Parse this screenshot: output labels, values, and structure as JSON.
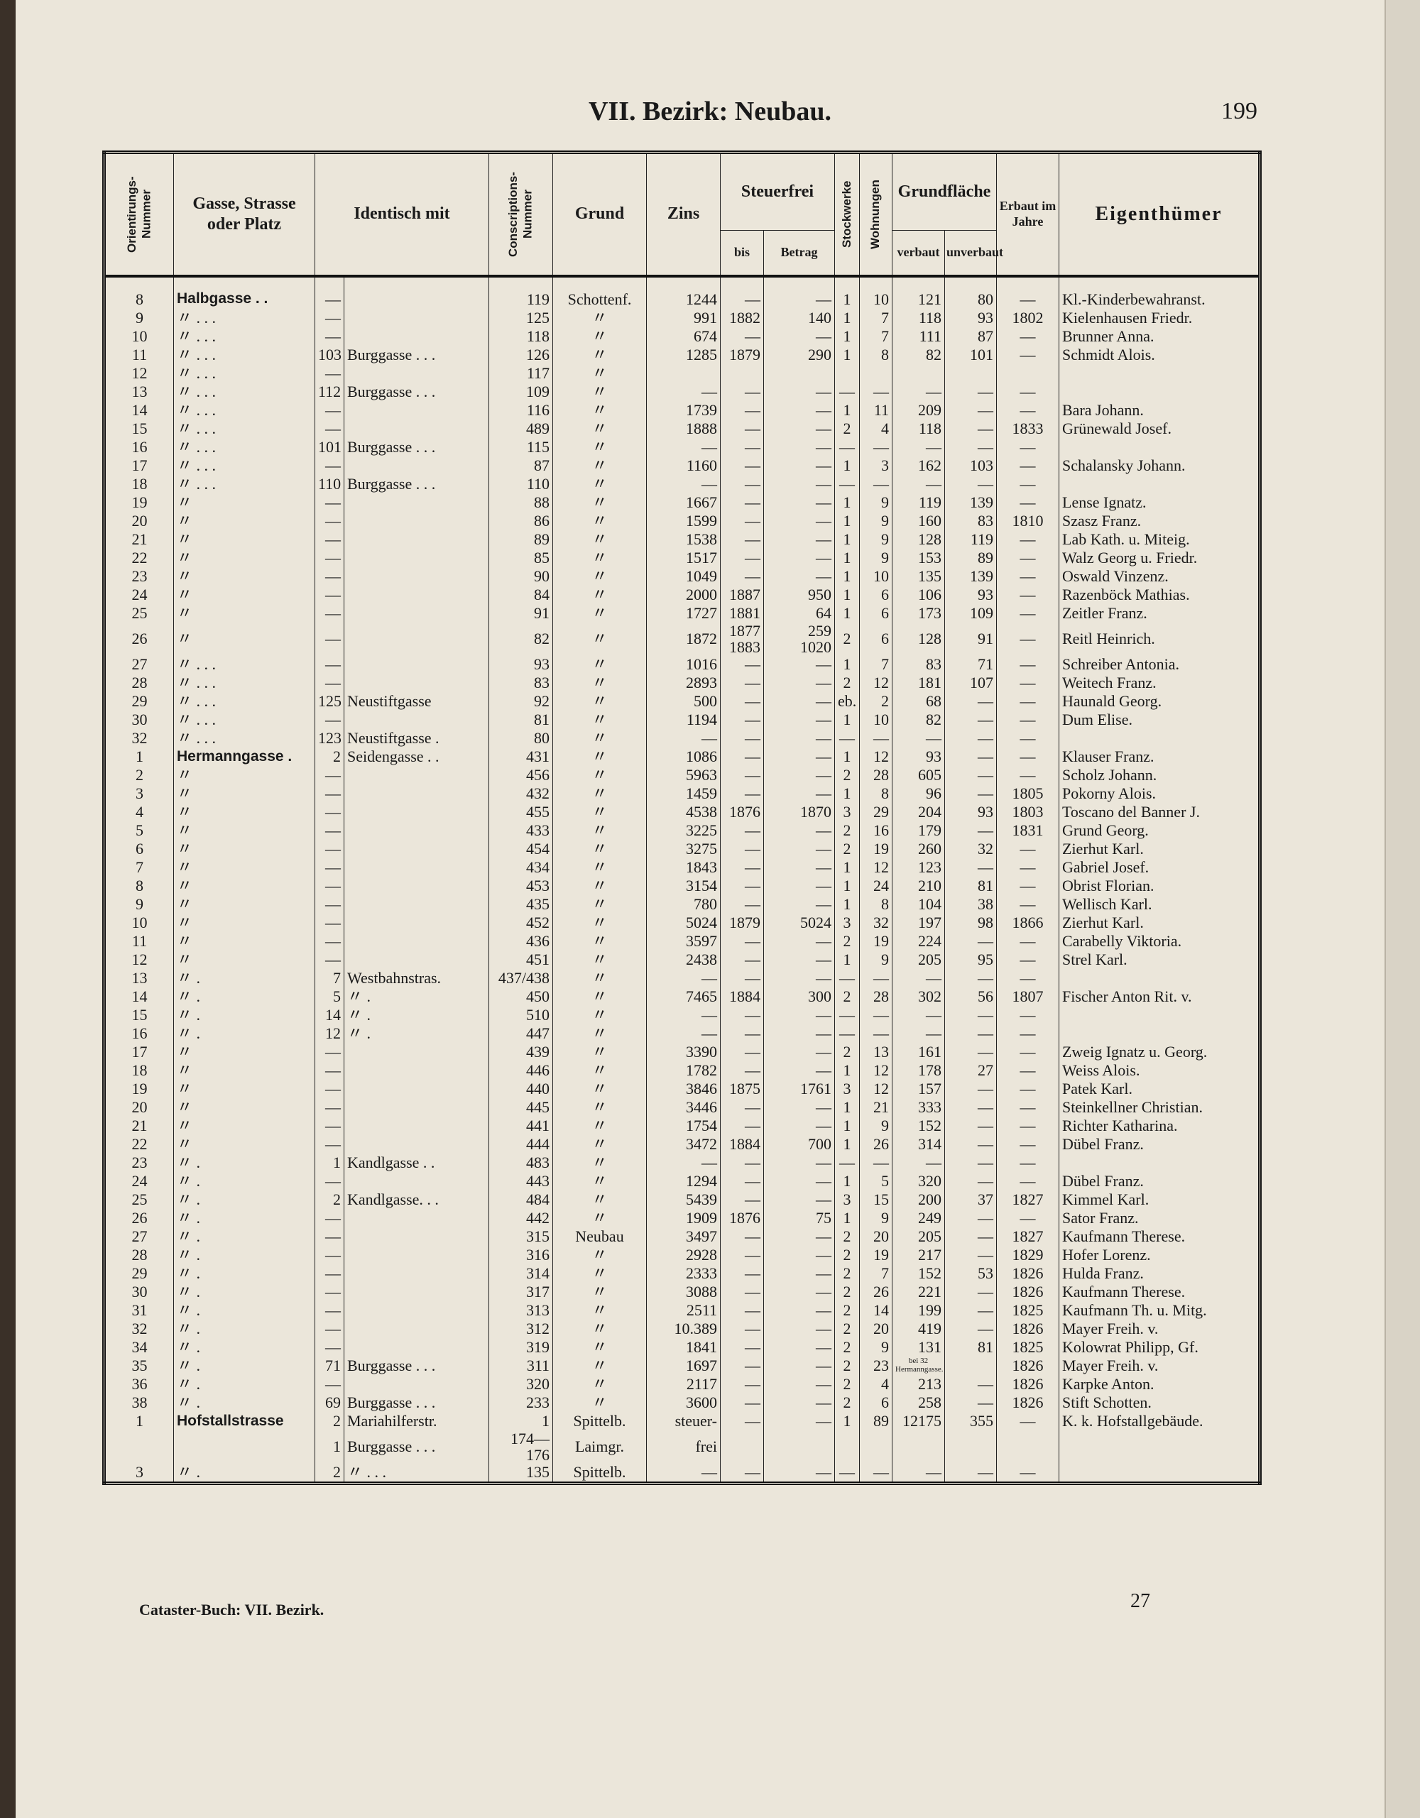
{
  "header": {
    "title": "VII. Bezirk: Neubau.",
    "page_number": "199"
  },
  "columns": {
    "orient": "Orientirungs-Nummer",
    "gasse": "Gasse, Strasse oder Platz",
    "identisch": "Identisch mit",
    "conscr": "Conscriptions-Nummer",
    "grund": "Grund",
    "zins": "Zins",
    "steuerfrei": "Steuerfrei",
    "bis": "bis",
    "betrag": "Betrag",
    "stock": "Stockwerke",
    "wohn": "Wohnungen",
    "grundflaeche": "Grundfläche",
    "verbaut": "verbaut",
    "unverbaut": "unverbaut",
    "erbaut": "Erbaut im Jahre",
    "eigenthuemer": "Eigenthümer"
  },
  "table": {
    "rows": [
      [
        "8",
        "Halbgasse . .",
        "—",
        null,
        "119",
        "Schottenf.",
        "1244",
        "—",
        "—",
        "1",
        "10",
        "121",
        "80",
        "—",
        "Kl.-Kinderbewahranst."
      ],
      [
        "9",
        "〃 . . .",
        "—",
        null,
        "125",
        "〃",
        "991",
        "1882",
        "140",
        "1",
        "7",
        "118",
        "93",
        "1802",
        "Kielenhausen Friedr."
      ],
      [
        "10",
        "〃 . . .",
        "—",
        null,
        "118",
        "〃",
        "674",
        "—",
        "—",
        "1",
        "7",
        "111",
        "87",
        "—",
        "Brunner Anna."
      ],
      [
        "11",
        "〃 . . .",
        "103",
        "Burggasse . . .",
        "126",
        "〃",
        "1285",
        "1879",
        "290",
        "1",
        "8",
        "82",
        "101",
        "—",
        "Schmidt Alois."
      ],
      [
        "12",
        "〃 . . .",
        "—",
        null,
        "117",
        "〃",
        null,
        null,
        null,
        null,
        null,
        null,
        null,
        null,
        null
      ],
      [
        "13",
        "〃 . . .",
        "112",
        "Burggasse . . .",
        "109",
        "〃",
        "—",
        "—",
        "—",
        "—",
        "—",
        "—",
        "—",
        "—",
        null
      ],
      [
        "14",
        "〃 . . .",
        "—",
        null,
        "116",
        "〃",
        "1739",
        "—",
        "—",
        "1",
        "11",
        "209",
        "—",
        "—",
        "Bara Johann."
      ],
      [
        "15",
        "〃 . . .",
        "—",
        null,
        "489",
        "〃",
        "1888",
        "—",
        "—",
        "2",
        "4",
        "118",
        "—",
        "1833",
        "Grünewald Josef."
      ],
      [
        "16",
        "〃 . . .",
        "101",
        "Burggasse . . .",
        "115",
        "〃",
        "—",
        "—",
        "—",
        "—",
        "—",
        "—",
        "—",
        "—",
        null
      ],
      [
        "17",
        "〃 . . .",
        "—",
        null,
        "87",
        "〃",
        "1160",
        "—",
        "—",
        "1",
        "3",
        "162",
        "103",
        "—",
        "Schalansky Johann."
      ],
      [
        "18",
        "〃 . . .",
        "110",
        "Burggasse . . .",
        "110",
        "〃",
        "—",
        "—",
        "—",
        "—",
        "—",
        "—",
        "—",
        "—",
        null
      ],
      [
        "19",
        "〃",
        "—",
        null,
        "88",
        "〃",
        "1667",
        "—",
        "—",
        "1",
        "9",
        "119",
        "139",
        "—",
        "Lense Ignatz."
      ],
      [
        "20",
        "〃",
        "—",
        null,
        "86",
        "〃",
        "1599",
        "—",
        "—",
        "1",
        "9",
        "160",
        "83",
        "1810",
        "Szasz Franz."
      ],
      [
        "21",
        "〃",
        "—",
        null,
        "89",
        "〃",
        "1538",
        "—",
        "—",
        "1",
        "9",
        "128",
        "119",
        "—",
        "Lab Kath. u. Miteig."
      ],
      [
        "22",
        "〃",
        "—",
        null,
        "85",
        "〃",
        "1517",
        "—",
        "—",
        "1",
        "9",
        "153",
        "89",
        "—",
        "Walz Georg u. Friedr."
      ],
      [
        "23",
        "〃",
        "—",
        null,
        "90",
        "〃",
        "1049",
        "—",
        "—",
        "1",
        "10",
        "135",
        "139",
        "—",
        "Oswald Vinzenz."
      ],
      [
        "24",
        "〃",
        "—",
        null,
        "84",
        "〃",
        "2000",
        "1887",
        "950",
        "1",
        "6",
        "106",
        "93",
        "—",
        "Razenböck Mathias."
      ],
      [
        "25",
        "〃",
        "—",
        null,
        "91",
        "〃",
        "1727",
        "1881",
        "64",
        "1",
        "6",
        "173",
        "109",
        "—",
        "Zeitler Franz."
      ],
      [
        "26",
        "〃",
        "—",
        null,
        "82",
        "〃",
        "1872",
        "1877\n1883",
        "259\n1020",
        "2",
        "6",
        "128",
        "91",
        "—",
        "Reitl Heinrich."
      ],
      [
        "27",
        "〃 . . .",
        "—",
        null,
        "93",
        "〃",
        "1016",
        "—",
        "—",
        "1",
        "7",
        "83",
        "71",
        "—",
        "Schreiber Antonia."
      ],
      [
        "28",
        "〃 . . .",
        "—",
        null,
        "83",
        "〃",
        "2893",
        "—",
        "—",
        "2",
        "12",
        "181",
        "107",
        "—",
        "Weitech Franz."
      ],
      [
        "29",
        "〃 . . .",
        "125",
        "Neustiftgasse",
        "92",
        "〃",
        "500",
        "—",
        "—",
        "eb.",
        "2",
        "68",
        "—",
        "—",
        "Haunald Georg."
      ],
      [
        "30",
        "〃 . . .",
        "—",
        null,
        "81",
        "〃",
        "1194",
        "—",
        "—",
        "1",
        "10",
        "82",
        "—",
        "—",
        "Dum Elise."
      ],
      [
        "32",
        "〃 . . .",
        "123",
        "Neustiftgasse .",
        "80",
        "〃",
        "—",
        "—",
        "—",
        "—",
        "—",
        "—",
        "—",
        "—",
        null
      ],
      [
        "1",
        "Hermanngasse .",
        "2",
        "Seidengasse . .",
        "431",
        "〃",
        "1086",
        "—",
        "—",
        "1",
        "12",
        "93",
        "—",
        "—",
        "Klauser Franz."
      ],
      [
        "2",
        "〃",
        "—",
        null,
        "456",
        "〃",
        "5963",
        "—",
        "—",
        "2",
        "28",
        "605",
        "—",
        "—",
        "Scholz Johann."
      ],
      [
        "3",
        "〃",
        "—",
        null,
        "432",
        "〃",
        "1459",
        "—",
        "—",
        "1",
        "8",
        "96",
        "—",
        "1805",
        "Pokorny Alois."
      ],
      [
        "4",
        "〃",
        "—",
        null,
        "455",
        "〃",
        "4538",
        "1876",
        "1870",
        "3",
        "29",
        "204",
        "93",
        "1803",
        "Toscano del Banner J."
      ],
      [
        "5",
        "〃",
        "—",
        null,
        "433",
        "〃",
        "3225",
        "—",
        "—",
        "2",
        "16",
        "179",
        "—",
        "1831",
        "Grund Georg."
      ],
      [
        "6",
        "〃",
        "—",
        null,
        "454",
        "〃",
        "3275",
        "—",
        "—",
        "2",
        "19",
        "260",
        "32",
        "—",
        "Zierhut Karl."
      ],
      [
        "7",
        "〃",
        "—",
        null,
        "434",
        "〃",
        "1843",
        "—",
        "—",
        "1",
        "12",
        "123",
        "—",
        "—",
        "Gabriel Josef."
      ],
      [
        "8",
        "〃",
        "—",
        null,
        "453",
        "〃",
        "3154",
        "—",
        "—",
        "1",
        "24",
        "210",
        "81",
        "—",
        "Obrist Florian."
      ],
      [
        "9",
        "〃",
        "—",
        null,
        "435",
        "〃",
        "780",
        "—",
        "—",
        "1",
        "8",
        "104",
        "38",
        "—",
        "Wellisch Karl."
      ],
      [
        "10",
        "〃",
        "—",
        null,
        "452",
        "〃",
        "5024",
        "1879",
        "5024",
        "3",
        "32",
        "197",
        "98",
        "1866",
        "Zierhut Karl."
      ],
      [
        "11",
        "〃",
        "—",
        null,
        "436",
        "〃",
        "3597",
        "—",
        "—",
        "2",
        "19",
        "224",
        "—",
        "—",
        "Carabelly Viktoria."
      ],
      [
        "12",
        "〃",
        "—",
        null,
        "451",
        "〃",
        "2438",
        "—",
        "—",
        "1",
        "9",
        "205",
        "95",
        "—",
        "Strel Karl."
      ],
      [
        "13",
        "〃 .",
        "7",
        "Westbahnstras.",
        "437/438",
        "〃",
        "—",
        "—",
        "—",
        "—",
        "—",
        "—",
        "—",
        "—",
        null
      ],
      [
        "14",
        "〃 .",
        "5",
        "〃 .",
        "450",
        "〃",
        "7465",
        "1884",
        "300",
        "2",
        "28",
        "302",
        "56",
        "1807",
        "Fischer Anton Rit. v."
      ],
      [
        "15",
        "〃 .",
        "14",
        "〃 .",
        "510",
        "〃",
        "—",
        "—",
        "—",
        "—",
        "—",
        "—",
        "—",
        "—",
        null
      ],
      [
        "16",
        "〃 .",
        "12",
        "〃 .",
        "447",
        "〃",
        "—",
        "—",
        "—",
        "—",
        "—",
        "—",
        "—",
        "—",
        null
      ],
      [
        "17",
        "〃",
        "—",
        null,
        "439",
        "〃",
        "3390",
        "—",
        "—",
        "2",
        "13",
        "161",
        "—",
        "—",
        "Zweig Ignatz u. Georg."
      ],
      [
        "18",
        "〃",
        "—",
        null,
        "446",
        "〃",
        "1782",
        "—",
        "—",
        "1",
        "12",
        "178",
        "27",
        "—",
        "Weiss Alois."
      ],
      [
        "19",
        "〃",
        "—",
        null,
        "440",
        "〃",
        "3846",
        "1875",
        "1761",
        "3",
        "12",
        "157",
        "—",
        "—",
        "Patek Karl."
      ],
      [
        "20",
        "〃",
        "—",
        null,
        "445",
        "〃",
        "3446",
        "—",
        "—",
        "1",
        "21",
        "333",
        "—",
        "—",
        "Steinkellner Christian."
      ],
      [
        "21",
        "〃",
        "—",
        null,
        "441",
        "〃",
        "1754",
        "—",
        "—",
        "1",
        "9",
        "152",
        "—",
        "—",
        "Richter Katharina."
      ],
      [
        "22",
        "〃",
        "—",
        null,
        "444",
        "〃",
        "3472",
        "1884",
        "700",
        "1",
        "26",
        "314",
        "—",
        "—",
        "Dübel Franz."
      ],
      [
        "23",
        "〃 .",
        "1",
        "Kandlgasse . .",
        "483",
        "〃",
        "—",
        "—",
        "—",
        "—",
        "—",
        "—",
        "—",
        "—",
        null
      ],
      [
        "24",
        "〃 .",
        "—",
        null,
        "443",
        "〃",
        "1294",
        "—",
        "—",
        "1",
        "5",
        "320",
        "—",
        "—",
        "Dübel Franz."
      ],
      [
        "25",
        "〃 .",
        "2",
        "Kandlgasse. . .",
        "484",
        "〃",
        "5439",
        "—",
        "—",
        "3",
        "15",
        "200",
        "37",
        "1827",
        "Kimmel Karl."
      ],
      [
        "26",
        "〃 .",
        "—",
        null,
        "442",
        "〃",
        "1909",
        "1876",
        "75",
        "1",
        "9",
        "249",
        "—",
        "—",
        "Sator Franz."
      ],
      [
        "27",
        "〃 .",
        "—",
        null,
        "315",
        "Neubau",
        "3497",
        "—",
        "—",
        "2",
        "20",
        "205",
        "—",
        "1827",
        "Kaufmann Therese."
      ],
      [
        "28",
        "〃 .",
        "—",
        null,
        "316",
        "〃",
        "2928",
        "—",
        "—",
        "2",
        "19",
        "217",
        "—",
        "1829",
        "Hofer Lorenz."
      ],
      [
        "29",
        "〃 .",
        "—",
        null,
        "314",
        "〃",
        "2333",
        "—",
        "—",
        "2",
        "7",
        "152",
        "53",
        "1826",
        "Hulda Franz."
      ],
      [
        "30",
        "〃 .",
        "—",
        null,
        "317",
        "〃",
        "3088",
        "—",
        "—",
        "2",
        "26",
        "221",
        "—",
        "1826",
        "Kaufmann Therese."
      ],
      [
        "31",
        "〃 .",
        "—",
        null,
        "313",
        "〃",
        "2511",
        "—",
        "—",
        "2",
        "14",
        "199",
        "—",
        "1825",
        "Kaufmann Th. u. Mitg."
      ],
      [
        "32",
        "〃 .",
        "—",
        null,
        "312",
        "〃",
        "10.389",
        "—",
        "—",
        "2",
        "20",
        "419",
        "—",
        "1826",
        "Mayer Freih. v."
      ],
      [
        "34",
        "〃 .",
        "—",
        null,
        "319",
        "〃",
        "1841",
        "—",
        "—",
        "2",
        "9",
        "131",
        "81",
        "1825",
        "Kolowrat Philipp, Gf."
      ],
      [
        "35",
        "〃 .",
        "71",
        "Burggasse . . .",
        "311",
        "〃",
        "1697",
        "—",
        "—",
        "2",
        "23",
        "bei 32 Hermanngasse.",
        null,
        "1826",
        "Mayer Freih. v."
      ],
      [
        "36",
        "〃 .",
        "—",
        null,
        "320",
        "〃",
        "2117",
        "—",
        "—",
        "2",
        "4",
        "213",
        "—",
        "1826",
        "Karpke Anton."
      ],
      [
        "38",
        "〃 .",
        "69",
        "Burggasse . . .",
        "233",
        "〃",
        "3600",
        "—",
        "—",
        "2",
        "6",
        "258",
        "—",
        "1826",
        "Stift Schotten."
      ],
      [
        "1",
        "Hofstallstrasse",
        "2",
        "Mariahilferstr.",
        "1",
        "Spittelb.",
        "steuer-",
        "—",
        "—",
        "1",
        "89",
        "12175",
        "355",
        "—",
        "K. k. Hofstallgebäude."
      ],
      [
        null,
        null,
        "1",
        "Burggasse . . .",
        "174—176",
        "Laimgr.",
        "frei",
        null,
        null,
        null,
        null,
        null,
        null,
        null,
        null
      ],
      [
        "3",
        "〃 .",
        "2",
        "〃 . . .",
        "135",
        "Spittelb.",
        "—",
        "—",
        "—",
        "—",
        "—",
        "—",
        "—",
        "—",
        null
      ]
    ]
  },
  "footer": {
    "left": "Cataster-Buch: VII. Bezirk.",
    "right": "27"
  }
}
